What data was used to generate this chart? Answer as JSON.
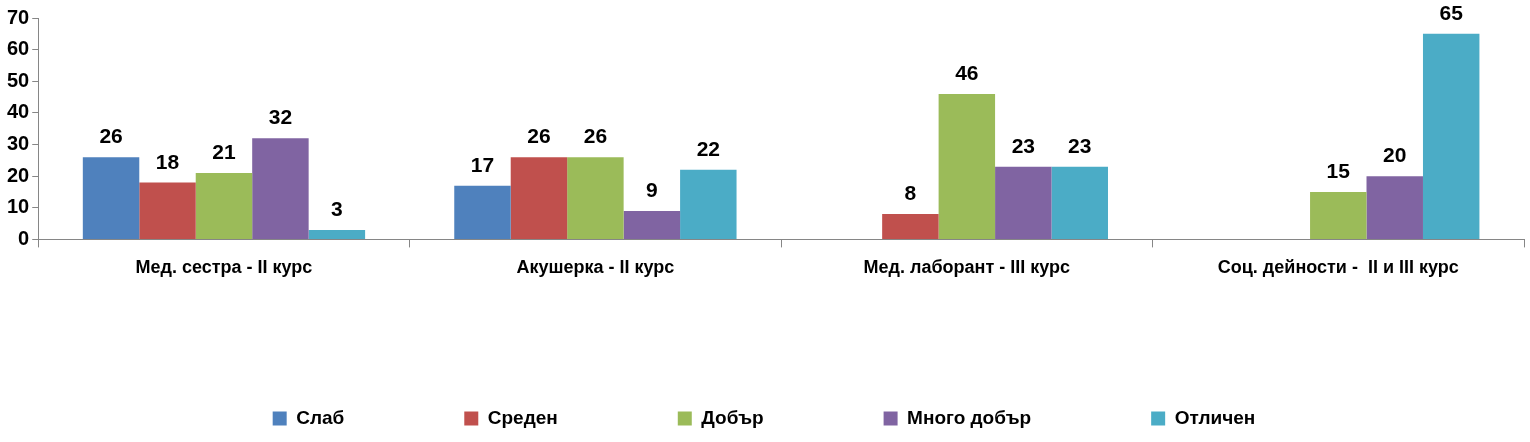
{
  "chart_data": {
    "type": "bar",
    "categories": [
      "Мед. сестра - II курс",
      "Акушерка - II курс",
      "Мед. лаборант - III курс",
      "Соц. дейности -  II и III курс"
    ],
    "series": [
      {
        "name": "Слаб",
        "color": "#4f81bd",
        "values": [
          26,
          17,
          null,
          null
        ]
      },
      {
        "name": "Среден",
        "color": "#c0504d",
        "values": [
          18,
          26,
          8,
          null
        ]
      },
      {
        "name": "Добър",
        "color": "#9bbb59",
        "values": [
          21,
          26,
          46,
          15
        ]
      },
      {
        "name": "Много добър",
        "color": "#8064a2",
        "values": [
          32,
          9,
          23,
          20
        ]
      },
      {
        "name": "Отличен",
        "color": "#4bacc6",
        "values": [
          3,
          22,
          23,
          65
        ]
      }
    ],
    "ylim": [
      0,
      70
    ],
    "yticks": [
      0,
      10,
      20,
      30,
      40,
      50,
      60,
      70
    ],
    "grid": false,
    "legend": "bottom",
    "data_labels": true
  }
}
